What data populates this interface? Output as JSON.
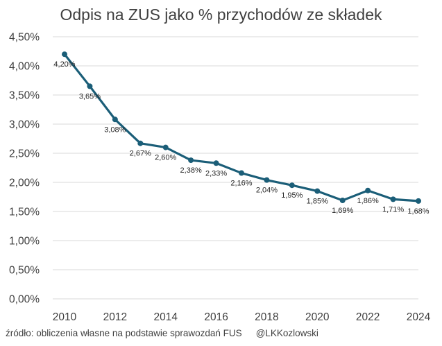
{
  "chart_data": {
    "type": "line",
    "title": "Odpis na ZUS jako % przychodów ze składek",
    "xlabel": "",
    "ylabel": "",
    "x": [
      2010,
      2011,
      2012,
      2013,
      2014,
      2015,
      2016,
      2017,
      2018,
      2019,
      2020,
      2021,
      2022,
      2023,
      2024
    ],
    "series": [
      {
        "values": [
          4.2,
          3.65,
          3.08,
          2.67,
          2.6,
          2.38,
          2.33,
          2.16,
          2.04,
          1.95,
          1.85,
          1.69,
          1.86,
          1.71,
          1.68
        ],
        "labels": [
          "4,20%",
          "3,65%",
          "3,08%",
          "2,67%",
          "2,60%",
          "2,38%",
          "2,33%",
          "2,16%",
          "2,04%",
          "1,95%",
          "1,85%",
          "1,69%",
          "1,86%",
          "1,71%",
          "1,68%"
        ],
        "color": "#1b5e78"
      }
    ],
    "ylim": [
      0,
      4.5
    ],
    "yticks": [
      0,
      0.5,
      1.0,
      1.5,
      2.0,
      2.5,
      3.0,
      3.5,
      4.0,
      4.5
    ],
    "ytick_labels": [
      "0,00%",
      "0,50%",
      "1,00%",
      "1,50%",
      "2,00%",
      "2,50%",
      "3,00%",
      "3,50%",
      "4,00%",
      "4,50%"
    ],
    "xticks": [
      2010,
      2012,
      2014,
      2016,
      2018,
      2020,
      2022,
      2024
    ],
    "xtick_labels": [
      "2010",
      "2012",
      "2014",
      "2016",
      "2018",
      "2020",
      "2022",
      "2024"
    ],
    "grid": true,
    "legend": "none"
  },
  "footer": {
    "source": "źródło: obliczenia własne na podstawie sprawozdań FUS",
    "handle": "@LKKozlowski"
  },
  "colors": {
    "line": "#1b5e78",
    "grid": "#d9d9d9",
    "text": "#404040"
  }
}
